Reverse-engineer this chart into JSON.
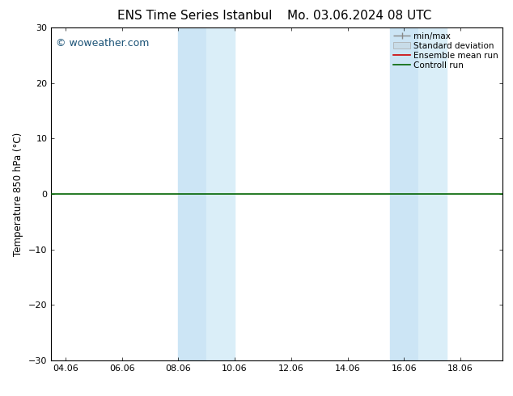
{
  "title_left": "ENS Time Series Istanbul",
  "title_right": "Mo. 03.06.2024 08 UTC",
  "ylabel": "Temperature 850 hPa (°C)",
  "ylim": [
    -30,
    30
  ],
  "yticks": [
    -30,
    -20,
    -10,
    0,
    10,
    20,
    30
  ],
  "xlim_start": 3.5,
  "xlim_end": 19.5,
  "xtick_labels": [
    "04.06",
    "06.06",
    "08.06",
    "10.06",
    "12.06",
    "14.06",
    "16.06",
    "18.06"
  ],
  "xtick_positions": [
    4,
    6,
    8,
    10,
    12,
    14,
    16,
    18
  ],
  "shaded_bands": [
    {
      "xmin": 8.0,
      "xmax": 9.0,
      "color": "#cce5f5"
    },
    {
      "xmin": 9.0,
      "xmax": 10.0,
      "color": "#daeef8"
    },
    {
      "xmin": 15.5,
      "xmax": 16.5,
      "color": "#cce5f5"
    },
    {
      "xmin": 16.5,
      "xmax": 17.5,
      "color": "#daeef8"
    }
  ],
  "hline_color": "#006400",
  "hline_linewidth": 1.2,
  "ensemble_mean_color": "#cc0000",
  "control_run_color": "#006400",
  "minmax_color": "#888888",
  "stddev_color": "#c8dce8",
  "background_color": "#ffffff",
  "watermark_text": "© woweather.com",
  "watermark_color": "#1a5276",
  "title_fontsize": 11,
  "legend_fontsize": 7.5,
  "tick_fontsize": 8,
  "ylabel_fontsize": 8.5
}
